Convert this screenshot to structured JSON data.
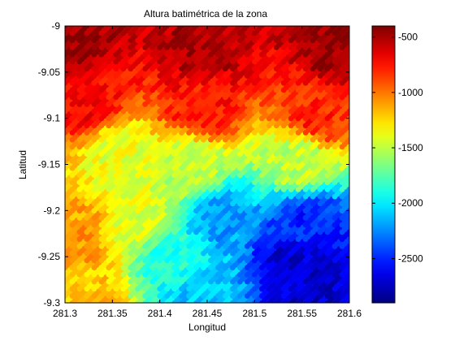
{
  "chart_data": {
    "type": "scatter",
    "title": "Altura batimétrica de la zona",
    "xlabel": "Longitud",
    "ylabel": "Latitud",
    "xlim": [
      281.3,
      281.6
    ],
    "ylim": [
      -9.3,
      -9.0
    ],
    "xticks": [
      "281.3",
      "281.35",
      "281.4",
      "281.45",
      "281.5",
      "281.55",
      "281.6"
    ],
    "yticks": [
      "-9",
      "-9.05",
      "-9.1",
      "-9.15",
      "-9.2",
      "-9.25",
      "-9.3"
    ],
    "grid": {
      "lon_start": 281.3,
      "lon_end": 281.6,
      "lon_count": 40,
      "lat_start": -9.3,
      "lat_end": -9.0,
      "lat_count": 40,
      "smear_steps": 7,
      "colorscale": "jet",
      "value_unit": "m"
    },
    "depth_field_control_points": [
      {
        "lon": 281.31,
        "lat": -9.01,
        "depth": -450
      },
      {
        "lon": 281.45,
        "lat": -9.02,
        "depth": -500
      },
      {
        "lon": 281.59,
        "lat": -9.01,
        "depth": -450
      },
      {
        "lon": 281.33,
        "lat": -9.08,
        "depth": -700
      },
      {
        "lon": 281.45,
        "lat": -9.08,
        "depth": -750
      },
      {
        "lon": 281.57,
        "lat": -9.09,
        "depth": -800
      },
      {
        "lon": 281.36,
        "lat": -9.13,
        "depth": -1400
      },
      {
        "lon": 281.44,
        "lat": -9.15,
        "depth": -1500
      },
      {
        "lon": 281.55,
        "lat": -9.14,
        "depth": -1500
      },
      {
        "lon": 281.38,
        "lat": -9.2,
        "depth": -1400
      },
      {
        "lon": 281.47,
        "lat": -9.2,
        "depth": -2200
      },
      {
        "lon": 281.56,
        "lat": -9.21,
        "depth": -2500
      },
      {
        "lon": 281.32,
        "lat": -9.22,
        "depth": -1100
      },
      {
        "lon": 281.42,
        "lat": -9.25,
        "depth": -1900
      },
      {
        "lon": 281.55,
        "lat": -9.25,
        "depth": -2700
      },
      {
        "lon": 281.33,
        "lat": -9.29,
        "depth": -1200
      },
      {
        "lon": 281.45,
        "lat": -9.29,
        "depth": -2100
      },
      {
        "lon": 281.57,
        "lat": -9.29,
        "depth": -2700
      }
    ],
    "colorbar": {
      "range": [
        -2900,
        -400
      ],
      "ticks": [
        "-500",
        "-1000",
        "-1500",
        "-2000",
        "-2500"
      ],
      "tick_values": [
        -500,
        -1000,
        -1500,
        -2000,
        -2500
      ]
    }
  }
}
